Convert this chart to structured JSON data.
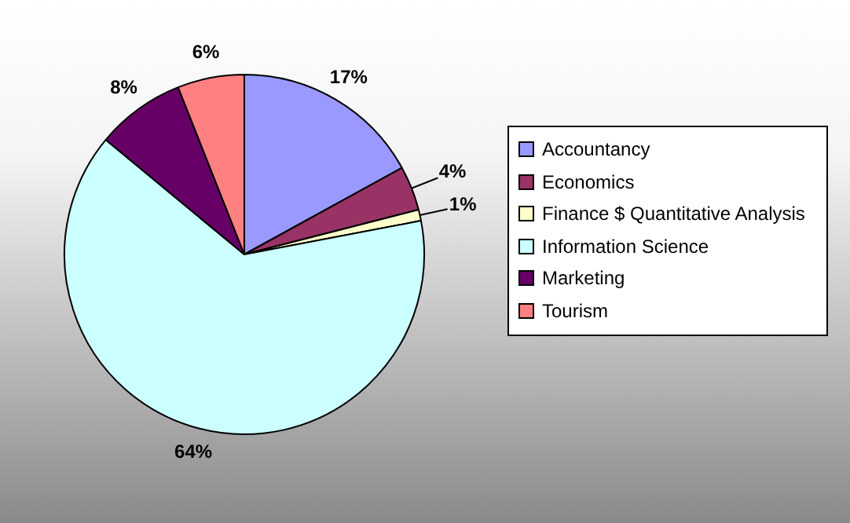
{
  "chart_data": {
    "type": "pie",
    "categories": [
      "Accountancy",
      "Economics",
      "Finance $ Quantitative Analysis",
      "Information Science",
      "Marketing",
      "Tourism"
    ],
    "values": [
      17,
      4,
      1,
      64,
      8,
      6
    ],
    "colors": [
      "#9999ff",
      "#993366",
      "#ffffcc",
      "#ccffff",
      "#660066",
      "#ff8080"
    ],
    "value_labels": [
      "17%",
      "4%",
      "1%",
      "64%",
      "8%",
      "6%"
    ],
    "legend": "right"
  }
}
